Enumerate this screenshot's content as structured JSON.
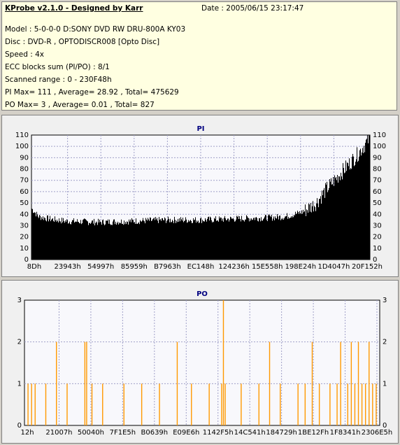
{
  "info": {
    "title": "KProbe v2.1.0 - Designed by Karr",
    "date": "Date : 2005/06/15 23:17:47",
    "lines": [
      "Model : 5-0-0-0 D:SONY    DVD RW DRU-800A  KY03",
      "Disc : DVD-R , OPTODISCR008 [Opto Disc]",
      "Speed : 4x",
      "ECC blocks sum (PI/PO) : 8/1",
      "Scanned range : 0 - 230F48h",
      "PI Max= 111 , Average= 28.92 , Total= 475629",
      "PO Max= 3 , Average= 0.01 , Total= 827"
    ]
  },
  "chart_data": [
    {
      "type": "area",
      "title": "PI",
      "color": "#000000",
      "ylim": [
        0,
        110
      ],
      "yticks": [
        0,
        10,
        20,
        30,
        40,
        50,
        60,
        70,
        80,
        90,
        100,
        110
      ],
      "xticks": [
        "8Dh",
        "23943h",
        "54997h",
        "85959h",
        "B7963h",
        "EC148h",
        "124236h",
        "15E558h",
        "198E24h",
        "1D4047h",
        "20F152h"
      ],
      "grid": true,
      "profile": [
        [
          0,
          45
        ],
        [
          0.02,
          38
        ],
        [
          0.05,
          36
        ],
        [
          0.1,
          34
        ],
        [
          0.2,
          33
        ],
        [
          0.3,
          34
        ],
        [
          0.4,
          35
        ],
        [
          0.5,
          35
        ],
        [
          0.6,
          36
        ],
        [
          0.7,
          37
        ],
        [
          0.75,
          38
        ],
        [
          0.8,
          42
        ],
        [
          0.84,
          50
        ],
        [
          0.87,
          62
        ],
        [
          0.9,
          72
        ],
        [
          0.93,
          82
        ],
        [
          0.96,
          92
        ],
        [
          0.98,
          100
        ],
        [
          1.0,
          108
        ]
      ]
    },
    {
      "type": "bar",
      "title": "PO",
      "color": "#ff9900",
      "ylim": [
        0,
        3
      ],
      "yticks": [
        0,
        1,
        2,
        3
      ],
      "xticks": [
        "12h",
        "21007h",
        "50040h",
        "7F1E5h",
        "B0639h",
        "E09E6h",
        "1142F5h",
        "14C541h",
        "184729h",
        "1BE12Fh",
        "1F8341h",
        "2306E5h"
      ],
      "grid": true,
      "spikes": [
        [
          0.01,
          1
        ],
        [
          0.02,
          1
        ],
        [
          0.03,
          1
        ],
        [
          0.06,
          1
        ],
        [
          0.09,
          2
        ],
        [
          0.12,
          1
        ],
        [
          0.17,
          2
        ],
        [
          0.175,
          2
        ],
        [
          0.19,
          1
        ],
        [
          0.22,
          1
        ],
        [
          0.28,
          1
        ],
        [
          0.33,
          1
        ],
        [
          0.38,
          1
        ],
        [
          0.43,
          2
        ],
        [
          0.47,
          1
        ],
        [
          0.52,
          1
        ],
        [
          0.555,
          1
        ],
        [
          0.56,
          3
        ],
        [
          0.565,
          1
        ],
        [
          0.61,
          1
        ],
        [
          0.66,
          1
        ],
        [
          0.69,
          2
        ],
        [
          0.72,
          1
        ],
        [
          0.77,
          1
        ],
        [
          0.79,
          1
        ],
        [
          0.81,
          2
        ],
        [
          0.83,
          1
        ],
        [
          0.86,
          1
        ],
        [
          0.88,
          1
        ],
        [
          0.89,
          2
        ],
        [
          0.91,
          1
        ],
        [
          0.92,
          2
        ],
        [
          0.93,
          1
        ],
        [
          0.94,
          2
        ],
        [
          0.95,
          1
        ],
        [
          0.96,
          1
        ],
        [
          0.97,
          2
        ],
        [
          0.98,
          1
        ],
        [
          0.99,
          1
        ]
      ]
    }
  ]
}
